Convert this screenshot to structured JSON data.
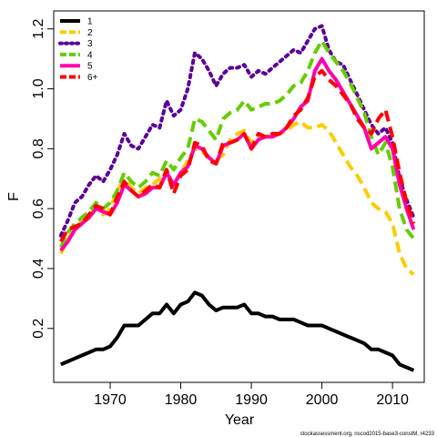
{
  "chart_data": {
    "type": "line",
    "title": "",
    "xlabel": "Year",
    "ylabel": "F",
    "xlim": [
      1962,
      2014.5
    ],
    "ylim": [
      0.02,
      1.26
    ],
    "xticks": [
      1970,
      1980,
      1990,
      2000,
      2010
    ],
    "yticks": [
      0.2,
      0.4,
      0.6,
      0.8,
      1.0,
      1.2
    ],
    "ytick_labels": [
      "0.2",
      "0.4",
      "0.6",
      "0.8",
      "1.0",
      "1.2"
    ],
    "grid": false,
    "legend_position": "top-left",
    "x": [
      1963,
      1964,
      1965,
      1966,
      1967,
      1968,
      1969,
      1970,
      1971,
      1972,
      1973,
      1974,
      1975,
      1976,
      1977,
      1978,
      1979,
      1980,
      1981,
      1982,
      1983,
      1984,
      1985,
      1986,
      1987,
      1988,
      1989,
      1990,
      1991,
      1992,
      1993,
      1994,
      1995,
      1996,
      1997,
      1998,
      1999,
      2000,
      2001,
      2002,
      2003,
      2004,
      2005,
      2006,
      2007,
      2008,
      2009,
      2010,
      2011,
      2012,
      2013
    ],
    "series": [
      {
        "name": "1",
        "color": "#000000",
        "dash": "solid",
        "values": [
          0.08,
          0.09,
          0.1,
          0.11,
          0.12,
          0.13,
          0.13,
          0.14,
          0.17,
          0.21,
          0.21,
          0.21,
          0.23,
          0.25,
          0.25,
          0.28,
          0.25,
          0.28,
          0.29,
          0.32,
          0.31,
          0.28,
          0.26,
          0.27,
          0.27,
          0.27,
          0.28,
          0.25,
          0.25,
          0.24,
          0.24,
          0.23,
          0.23,
          0.23,
          0.22,
          0.21,
          0.21,
          0.21,
          0.2,
          0.19,
          0.18,
          0.17,
          0.16,
          0.15,
          0.13,
          0.13,
          0.12,
          0.11,
          0.08,
          0.07,
          0.06
        ]
      },
      {
        "name": "2",
        "color": "#ffcc00",
        "dash": "dashed",
        "values": [
          0.45,
          0.5,
          0.53,
          0.56,
          0.58,
          0.6,
          0.58,
          0.6,
          0.66,
          0.7,
          0.67,
          0.65,
          0.67,
          0.68,
          0.7,
          0.72,
          0.68,
          0.72,
          0.76,
          0.8,
          0.79,
          0.77,
          0.76,
          0.78,
          0.83,
          0.85,
          0.86,
          0.82,
          0.84,
          0.84,
          0.85,
          0.85,
          0.86,
          0.88,
          0.89,
          0.87,
          0.87,
          0.88,
          0.86,
          0.82,
          0.78,
          0.74,
          0.71,
          0.67,
          0.62,
          0.6,
          0.59,
          0.55,
          0.45,
          0.4,
          0.38
        ]
      },
      {
        "name": "3",
        "color": "#5a0096",
        "dash": "dotted",
        "values": [
          0.51,
          0.56,
          0.62,
          0.64,
          0.68,
          0.71,
          0.69,
          0.73,
          0.78,
          0.85,
          0.81,
          0.8,
          0.84,
          0.88,
          0.87,
          0.96,
          0.91,
          0.93,
          1.0,
          1.12,
          1.1,
          1.06,
          1.01,
          1.05,
          1.07,
          1.07,
          1.08,
          1.04,
          1.06,
          1.05,
          1.07,
          1.09,
          1.11,
          1.13,
          1.12,
          1.16,
          1.2,
          1.21,
          1.13,
          1.09,
          1.08,
          1.03,
          0.98,
          0.93,
          0.88,
          0.85,
          0.87,
          0.82,
          0.7,
          0.63,
          0.57
        ]
      },
      {
        "name": "4",
        "color": "#66cc00",
        "dash": "dashed",
        "values": [
          0.47,
          0.52,
          0.55,
          0.57,
          0.59,
          0.62,
          0.6,
          0.62,
          0.66,
          0.72,
          0.69,
          0.67,
          0.69,
          0.72,
          0.71,
          0.76,
          0.73,
          0.77,
          0.8,
          0.9,
          0.89,
          0.86,
          0.83,
          0.9,
          0.92,
          0.93,
          0.96,
          0.93,
          0.94,
          0.95,
          0.95,
          0.96,
          0.98,
          1.01,
          1.02,
          1.06,
          1.12,
          1.16,
          1.12,
          1.09,
          1.06,
          1.02,
          0.97,
          0.92,
          0.84,
          0.78,
          0.82,
          0.74,
          0.6,
          0.53,
          0.5
        ]
      },
      {
        "name": "5",
        "color": "#ff00aa",
        "dash": "solid",
        "values": [
          0.46,
          0.49,
          0.53,
          0.55,
          0.57,
          0.6,
          0.59,
          0.58,
          0.62,
          0.68,
          0.66,
          0.64,
          0.65,
          0.67,
          0.67,
          0.72,
          0.68,
          0.72,
          0.74,
          0.81,
          0.8,
          0.77,
          0.75,
          0.81,
          0.82,
          0.83,
          0.85,
          0.8,
          0.83,
          0.84,
          0.84,
          0.85,
          0.87,
          0.9,
          0.94,
          0.96,
          1.06,
          1.1,
          1.06,
          1.03,
          0.99,
          0.95,
          0.91,
          0.87,
          0.8,
          0.82,
          0.84,
          0.8,
          0.68,
          0.6,
          0.53
        ]
      },
      {
        "name": "6+",
        "color": "#ff0000",
        "dash": "dashed",
        "values": [
          0.49,
          0.53,
          0.54,
          0.55,
          0.58,
          0.61,
          0.6,
          0.58,
          0.64,
          0.69,
          0.66,
          0.64,
          0.66,
          0.68,
          0.67,
          0.73,
          0.65,
          0.71,
          0.73,
          0.82,
          0.81,
          0.76,
          0.75,
          0.82,
          0.82,
          0.83,
          0.85,
          0.8,
          0.85,
          0.84,
          0.85,
          0.85,
          0.87,
          0.91,
          0.93,
          0.97,
          1.04,
          1.06,
          1.03,
          1.01,
          0.98,
          0.95,
          0.9,
          0.87,
          0.85,
          0.9,
          0.93,
          0.84,
          0.72,
          0.62,
          0.55
        ]
      }
    ]
  },
  "footer": "stockassessment.org, nscod2015-base3-constM, r4233"
}
